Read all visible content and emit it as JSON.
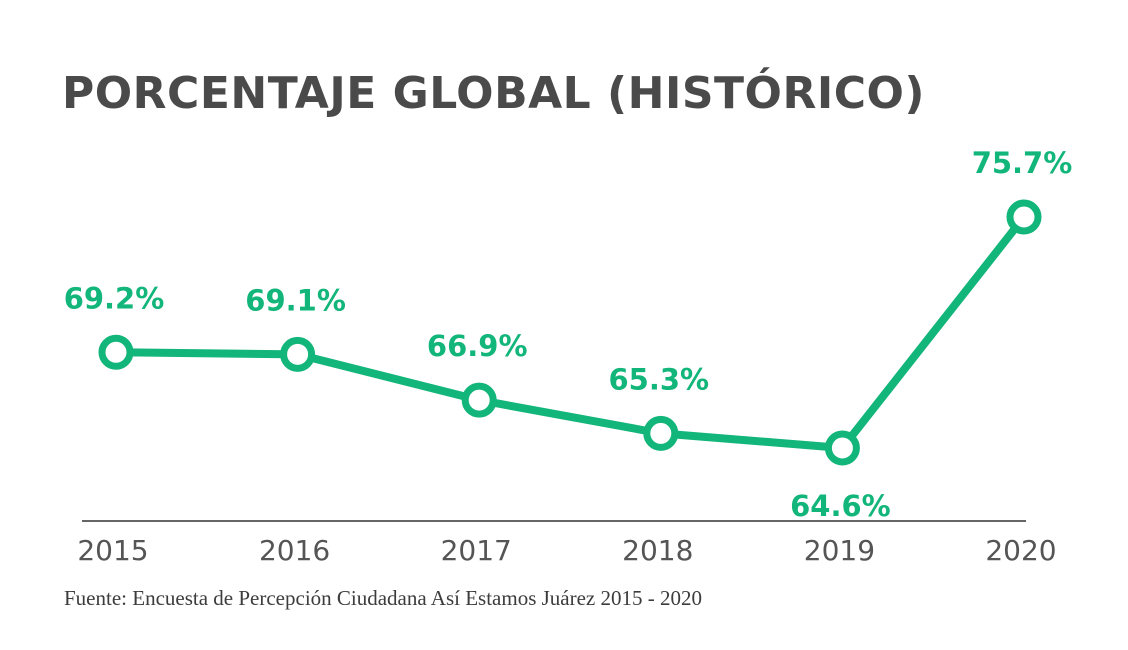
{
  "chart_data": {
    "type": "line",
    "title": "PORCENTAJE GLOBAL (HISTÓRICO)",
    "categories": [
      "2015",
      "2016",
      "2017",
      "2018",
      "2019",
      "2020"
    ],
    "series": [
      {
        "name": "Porcentaje global",
        "values": [
          69.2,
          69.1,
          66.9,
          65.3,
          64.6,
          75.7
        ],
        "labels": [
          "69.2%",
          "69.1%",
          "66.9%",
          "65.3%",
          "64.6%",
          "75.7%"
        ]
      }
    ],
    "xlabel": "",
    "ylabel": "",
    "grid": false,
    "legend": "none",
    "colors": {
      "line": "#12b57a",
      "marker_fill": "#ffffff",
      "label": "#12b57a",
      "title": "#4a4a4a",
      "axis": "#333333",
      "ticks": "#555555"
    }
  },
  "source": "Fuente: Encuesta de Percepción Ciudadana Así Estamos Juárez 2015 - 2020"
}
